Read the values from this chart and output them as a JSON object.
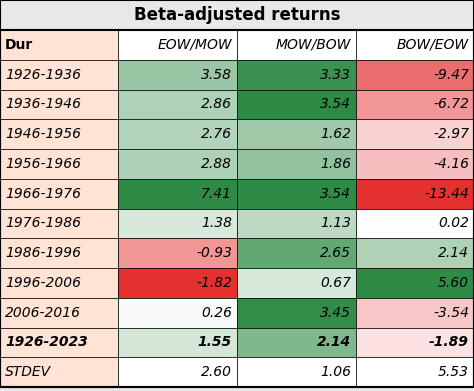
{
  "title": "Beta-adjusted returns",
  "col_headers": [
    "Dur",
    "EOW/MOW",
    "MOW/BOW",
    "BOW/EOW"
  ],
  "rows": [
    {
      "label": "1926-1936",
      "values": [
        3.58,
        3.33,
        -9.47
      ],
      "bold": false
    },
    {
      "label": "1936-1946",
      "values": [
        2.86,
        3.54,
        -6.72
      ],
      "bold": false
    },
    {
      "label": "1946-1956",
      "values": [
        2.76,
        1.62,
        -2.97
      ],
      "bold": false
    },
    {
      "label": "1956-1966",
      "values": [
        2.88,
        1.86,
        -4.16
      ],
      "bold": false
    },
    {
      "label": "1966-1976",
      "values": [
        7.41,
        3.54,
        -13.44
      ],
      "bold": false
    },
    {
      "label": "1976-1986",
      "values": [
        1.38,
        1.13,
        0.02
      ],
      "bold": false
    },
    {
      "label": "1986-1996",
      "values": [
        -0.93,
        2.65,
        2.14
      ],
      "bold": false
    },
    {
      "label": "1996-2006",
      "values": [
        -1.82,
        0.67,
        5.6
      ],
      "bold": false
    },
    {
      "label": "2006-2016",
      "values": [
        0.26,
        3.45,
        -3.54
      ],
      "bold": false
    },
    {
      "label": "1926-2023",
      "values": [
        1.55,
        2.14,
        -1.89
      ],
      "bold": true
    }
  ],
  "stdev_row": {
    "label": "STDEV",
    "values": [
      2.6,
      1.06,
      5.53
    ]
  },
  "header_bg": "#FFE4D6",
  "label_col_bg": "#FFE4D6",
  "title_fontsize": 12,
  "header_fontsize": 10,
  "cell_fontsize": 10,
  "value_ranges": {
    "EOW/MOW": {
      "min": -1.82,
      "max": 7.41
    },
    "MOW/BOW": {
      "min": 0.67,
      "max": 3.54
    },
    "BOW/EOW": {
      "min": -13.44,
      "max": 5.6
    }
  },
  "bg_color": "#E8E8E8"
}
